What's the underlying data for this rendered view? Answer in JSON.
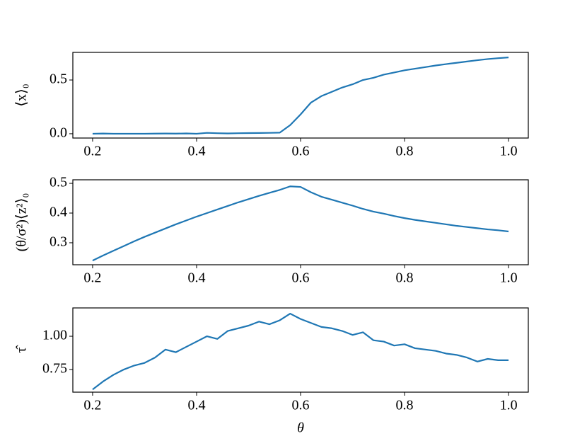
{
  "chart_data": [
    {
      "type": "line",
      "ylabel": "⟨x⟩₀",
      "x": [
        0.2,
        0.22,
        0.24,
        0.26,
        0.28,
        0.3,
        0.32,
        0.34,
        0.36,
        0.38,
        0.4,
        0.42,
        0.44,
        0.46,
        0.48,
        0.5,
        0.52,
        0.54,
        0.56,
        0.58,
        0.6,
        0.62,
        0.64,
        0.66,
        0.68,
        0.7,
        0.72,
        0.74,
        0.76,
        0.78,
        0.8,
        0.82,
        0.84,
        0.86,
        0.88,
        0.9,
        0.92,
        0.94,
        0.96,
        0.98,
        1.0
      ],
      "series": [
        {
          "color": "#1f77b4",
          "values": [
            0.0,
            0.002,
            0.0,
            0.0,
            0.0,
            0.0,
            0.001,
            0.002,
            0.001,
            0.003,
            0.0,
            0.008,
            0.005,
            0.003,
            0.005,
            0.006,
            0.007,
            0.008,
            0.01,
            0.08,
            0.18,
            0.29,
            0.35,
            0.39,
            0.43,
            0.46,
            0.5,
            0.52,
            0.55,
            0.57,
            0.59,
            0.605,
            0.62,
            0.635,
            0.648,
            0.66,
            0.672,
            0.684,
            0.695,
            0.703,
            0.71
          ]
        }
      ],
      "xlim": [
        0.162,
        1.038
      ],
      "xticks": [
        0.2,
        0.4,
        0.6,
        0.8,
        {
          "value": 1,
          "label": "1.0"
        }
      ],
      "ylim": [
        -0.04,
        0.757
      ],
      "yticks": [
        {
          "value": 0,
          "label": "0.0"
        },
        0.5
      ]
    },
    {
      "type": "line",
      "ylabel": "(θ/σ²)⟨z²⟩₀",
      "x": [
        0.2,
        0.22,
        0.24,
        0.26,
        0.28,
        0.3,
        0.32,
        0.34,
        0.36,
        0.38,
        0.4,
        0.42,
        0.44,
        0.46,
        0.48,
        0.5,
        0.52,
        0.54,
        0.56,
        0.58,
        0.6,
        0.62,
        0.64,
        0.66,
        0.68,
        0.7,
        0.72,
        0.74,
        0.76,
        0.78,
        0.8,
        0.82,
        0.84,
        0.86,
        0.88,
        0.9,
        0.92,
        0.94,
        0.96,
        0.98,
        1.0
      ],
      "series": [
        {
          "color": "#1f77b4",
          "values": [
            0.24,
            0.257,
            0.273,
            0.289,
            0.305,
            0.32,
            0.334,
            0.348,
            0.362,
            0.375,
            0.388,
            0.4,
            0.412,
            0.424,
            0.436,
            0.447,
            0.458,
            0.468,
            0.478,
            0.49,
            0.488,
            0.47,
            0.455,
            0.445,
            0.435,
            0.425,
            0.414,
            0.405,
            0.398,
            0.39,
            0.383,
            0.377,
            0.372,
            0.367,
            0.362,
            0.357,
            0.353,
            0.349,
            0.345,
            0.342,
            0.338
          ]
        }
      ],
      "xlim": [
        0.162,
        1.038
      ],
      "xticks": [
        0.2,
        0.4,
        0.6,
        0.8,
        {
          "value": 1,
          "label": "1.0"
        }
      ],
      "ylim": [
        0.226,
        0.512
      ],
      "yticks": [
        0.3,
        0.4,
        0.5
      ]
    },
    {
      "type": "line",
      "ylabel": "τ̂",
      "xlabel": "θ",
      "x": [
        0.2,
        0.22,
        0.24,
        0.26,
        0.28,
        0.3,
        0.32,
        0.34,
        0.36,
        0.38,
        0.4,
        0.42,
        0.44,
        0.46,
        0.48,
        0.5,
        0.52,
        0.54,
        0.56,
        0.58,
        0.6,
        0.62,
        0.64,
        0.66,
        0.68,
        0.7,
        0.72,
        0.74,
        0.76,
        0.78,
        0.8,
        0.82,
        0.84,
        0.86,
        0.88,
        0.9,
        0.92,
        0.94,
        0.96,
        0.98,
        1.0
      ],
      "series": [
        {
          "color": "#1f77b4",
          "values": [
            0.6,
            0.66,
            0.71,
            0.75,
            0.78,
            0.8,
            0.84,
            0.9,
            0.88,
            0.92,
            0.96,
            1.0,
            0.98,
            1.04,
            1.06,
            1.08,
            1.11,
            1.09,
            1.12,
            1.17,
            1.13,
            1.1,
            1.07,
            1.06,
            1.04,
            1.01,
            1.03,
            0.97,
            0.96,
            0.93,
            0.94,
            0.91,
            0.9,
            0.89,
            0.87,
            0.86,
            0.84,
            0.81,
            0.83,
            0.82,
            0.82
          ]
        }
      ],
      "xlim": [
        0.162,
        1.038
      ],
      "xticks": [
        0.2,
        0.4,
        0.6,
        0.8,
        {
          "value": 1,
          "label": "1.0"
        }
      ],
      "ylim": [
        0.58,
        1.213
      ],
      "yticks": [
        0.75,
        {
          "value": 1,
          "label": "1.00"
        }
      ]
    }
  ]
}
